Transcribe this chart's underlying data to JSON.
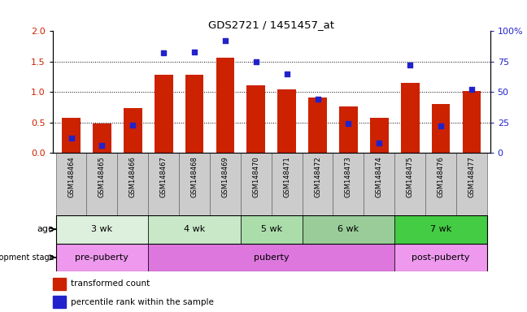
{
  "title": "GDS2721 / 1451457_at",
  "samples": [
    "GSM148464",
    "GSM148465",
    "GSM148466",
    "GSM148467",
    "GSM148468",
    "GSM148469",
    "GSM148470",
    "GSM148471",
    "GSM148472",
    "GSM148473",
    "GSM148474",
    "GSM148475",
    "GSM148476",
    "GSM148477"
  ],
  "transformed_counts": [
    0.57,
    0.48,
    0.73,
    1.28,
    1.29,
    1.56,
    1.11,
    1.05,
    0.91,
    0.76,
    0.58,
    1.15,
    0.8,
    1.02
  ],
  "percentile_ranks": [
    12,
    6,
    23,
    82,
    83,
    92,
    75,
    65,
    44,
    24,
    8,
    72,
    22,
    52
  ],
  "bar_color": "#cc2200",
  "dot_color": "#2222cc",
  "ylim_left": [
    0,
    2
  ],
  "ylim_right": [
    0,
    100
  ],
  "yticks_left": [
    0,
    0.5,
    1.0,
    1.5,
    2.0
  ],
  "yticks_right": [
    0,
    25,
    50,
    75,
    100
  ],
  "ytick_labels_right": [
    "0",
    "25",
    "50",
    "75",
    "100%"
  ],
  "age_groups": [
    {
      "label": "3 wk",
      "start": 0,
      "end": 3,
      "color": "#ddf0dd"
    },
    {
      "label": "4 wk",
      "start": 3,
      "end": 6,
      "color": "#c8e8c8"
    },
    {
      "label": "5 wk",
      "start": 6,
      "end": 8,
      "color": "#aaddaa"
    },
    {
      "label": "6 wk",
      "start": 8,
      "end": 11,
      "color": "#99cc99"
    },
    {
      "label": "7 wk",
      "start": 11,
      "end": 14,
      "color": "#44cc44"
    }
  ],
  "dev_groups": [
    {
      "label": "pre-puberty",
      "start": 0,
      "end": 3,
      "color": "#ee99ee"
    },
    {
      "label": "puberty",
      "start": 3,
      "end": 11,
      "color": "#dd77dd"
    },
    {
      "label": "post-puberty",
      "start": 11,
      "end": 14,
      "color": "#ee99ee"
    }
  ],
  "legend_bar_label": "transformed count",
  "legend_dot_label": "percentile rank within the sample",
  "bg_color": "#ffffff",
  "xtick_bg": "#cccccc",
  "bar_width": 0.6
}
